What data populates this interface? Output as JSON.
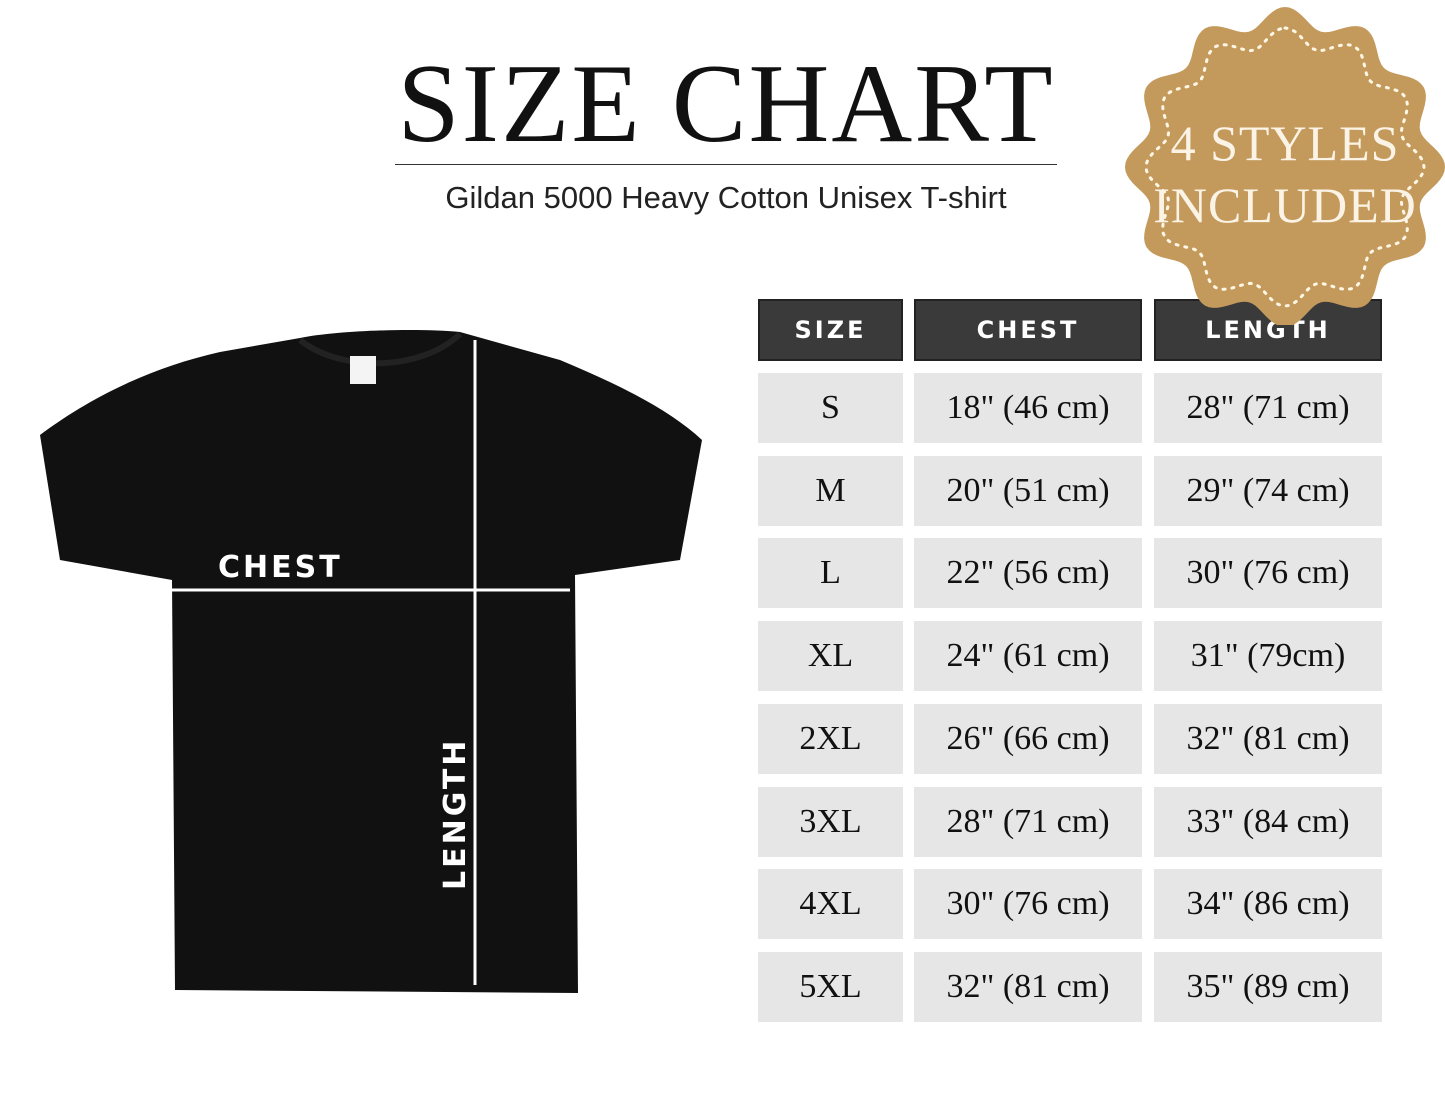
{
  "title": "SIZE CHART",
  "subtitle": "Gildan 5000 Heavy Cotton Unisex T-shirt",
  "badge": {
    "line1": "4 STYLES",
    "line2": "INCLUDED",
    "color": "#c49a5c"
  },
  "shirt": {
    "chest_label": "CHEST",
    "length_label": "LENGTH",
    "color": "#111111"
  },
  "table": {
    "headers": [
      "SIZE",
      "CHEST",
      "LENGTH"
    ],
    "rows": [
      [
        "S",
        "18\" (46 cm)",
        "28\" (71 cm)"
      ],
      [
        "M",
        "20\" (51 cm)",
        "29\" (74 cm)"
      ],
      [
        "L",
        "22\" (56 cm)",
        "30\" (76 cm)"
      ],
      [
        "XL",
        "24\" (61 cm)",
        "31\" (79cm)"
      ],
      [
        "2XL",
        "26\" (66 cm)",
        "32\" (81 cm)"
      ],
      [
        "3XL",
        "28\" (71 cm)",
        "33\" (84 cm)"
      ],
      [
        "4XL",
        "30\" (76 cm)",
        "34\" (86 cm)"
      ],
      [
        "5XL",
        "32\" (81 cm)",
        "35\" (89 cm)"
      ]
    ]
  }
}
